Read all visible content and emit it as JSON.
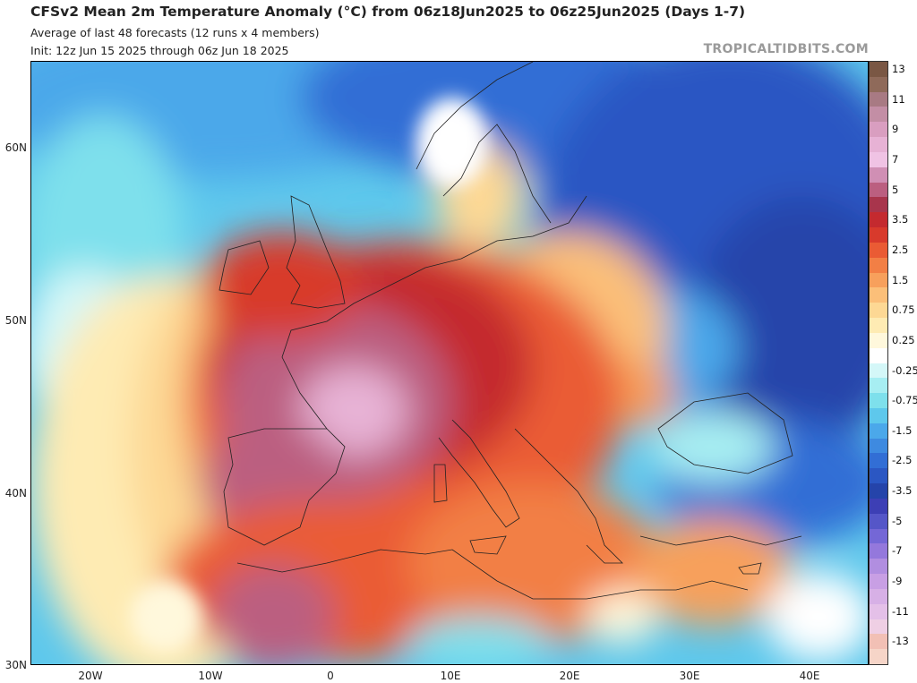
{
  "header": {
    "title": "CFSv2 Mean 2m Temperature Anomaly (°C) from 06z18Jun2025 to 06z25Jun2025 (Days 1-7)",
    "subtitle1": "Average of last 48 forecasts (12 runs x 4 members)",
    "subtitle2": "Init: 12z Jun 15 2025 through 06z Jun 18 2025",
    "brand": "TROPICALTIDBITS.COM"
  },
  "map": {
    "extent": {
      "lon": [
        -25,
        45
      ],
      "lat": [
        30,
        65
      ]
    },
    "lat_ticks": [
      {
        "value": 60,
        "label": "60N"
      },
      {
        "value": 50,
        "label": "50N"
      },
      {
        "value": 40,
        "label": "40N"
      },
      {
        "value": 30,
        "label": "30N"
      }
    ],
    "lon_ticks": [
      {
        "value": -20,
        "label": "20W"
      },
      {
        "value": -10,
        "label": "10W"
      },
      {
        "value": 0,
        "label": "0"
      },
      {
        "value": 10,
        "label": "10E"
      },
      {
        "value": 20,
        "label": "20E"
      },
      {
        "value": 30,
        "label": "30E"
      },
      {
        "value": 40,
        "label": "40E"
      }
    ],
    "field_description": "warm anomaly over western and central Europe and North Africa, cold anomaly over Scandinavia, eastern Europe and the Black Sea"
  },
  "colorbar": {
    "levels": [
      {
        "label": "13",
        "color": "#7a5744"
      },
      {
        "label": "",
        "color": "#8f6a5a"
      },
      {
        "label": "11",
        "color": "#a87a83"
      },
      {
        "label": "",
        "color": "#c38ea5"
      },
      {
        "label": "9",
        "color": "#d99ec0"
      },
      {
        "label": "",
        "color": "#e7b2d5"
      },
      {
        "label": "7",
        "color": "#f0c3e4"
      },
      {
        "label": "",
        "color": "#d08fb4"
      },
      {
        "label": "5",
        "color": "#bb5f80"
      },
      {
        "label": "",
        "color": "#a8354c"
      },
      {
        "label": "3.5",
        "color": "#c42a2f"
      },
      {
        "label": "",
        "color": "#d83a2c"
      },
      {
        "label": "2.5",
        "color": "#ea5b34"
      },
      {
        "label": "",
        "color": "#f27f45"
      },
      {
        "label": "1.5",
        "color": "#f7a05c"
      },
      {
        "label": "",
        "color": "#fbbf79"
      },
      {
        "label": "0.75",
        "color": "#fdd894"
      },
      {
        "label": "",
        "color": "#feebb3"
      },
      {
        "label": "0.25",
        "color": "#fff8dc"
      },
      {
        "label": "",
        "color": "#ffffff"
      },
      {
        "label": "-0.25",
        "color": "#d4f7f8"
      },
      {
        "label": "",
        "color": "#a7eef2"
      },
      {
        "label": "-0.75",
        "color": "#7ee0ec"
      },
      {
        "label": "",
        "color": "#5ec8ec"
      },
      {
        "label": "-1.5",
        "color": "#4ba8ea"
      },
      {
        "label": "",
        "color": "#3e8ae0"
      },
      {
        "label": "-2.5",
        "color": "#326ed5"
      },
      {
        "label": "",
        "color": "#2b57c3"
      },
      {
        "label": "-3.5",
        "color": "#2544aa"
      },
      {
        "label": "",
        "color": "#3d3fb5"
      },
      {
        "label": "-5",
        "color": "#5556c8"
      },
      {
        "label": "",
        "color": "#7467d6"
      },
      {
        "label": "-7",
        "color": "#9478dc"
      },
      {
        "label": "",
        "color": "#b18ee0"
      },
      {
        "label": "-9",
        "color": "#c89fe4"
      },
      {
        "label": "",
        "color": "#d7b0e6"
      },
      {
        "label": "-11",
        "color": "#e4c0e8"
      },
      {
        "label": "",
        "color": "#efcfe4"
      },
      {
        "label": "-13",
        "color": "#f2c0b5"
      },
      {
        "label": "",
        "color": "#f6d5c8"
      }
    ]
  }
}
